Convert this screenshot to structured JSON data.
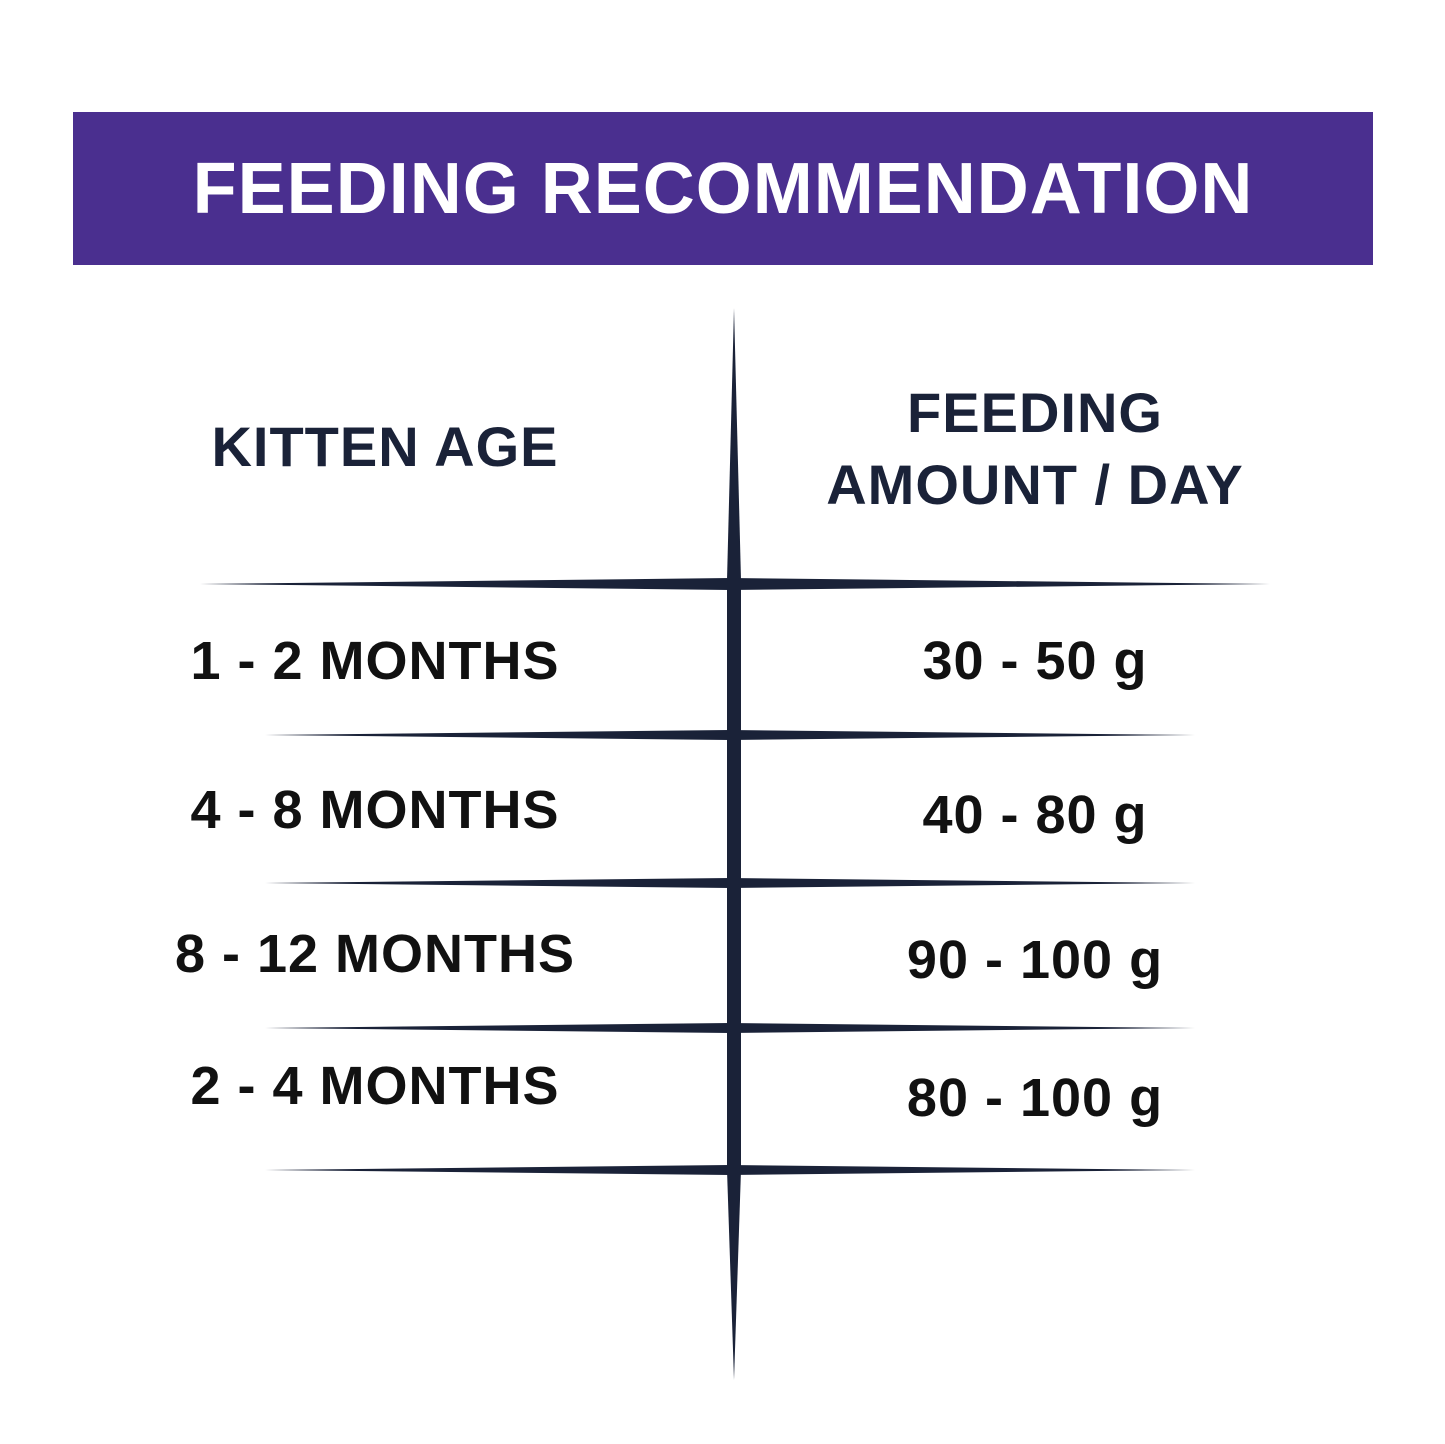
{
  "banner": {
    "title": "FEEDING RECOMMENDATION"
  },
  "colors": {
    "banner_bg": "#4a2f8f",
    "banner_text": "#ffffff",
    "rule": "#1a2238",
    "text": "#1a2238"
  },
  "table": {
    "headers": {
      "age": "KITTEN AGE",
      "amount_line1": "FEEDING",
      "amount_line2": "AMOUNT / DAY"
    },
    "rows": [
      {
        "age": "1 - 2 MONTHS",
        "amount": "30 - 50 g"
      },
      {
        "age": "4 - 8 MONTHS",
        "amount": "40 - 80 g"
      },
      {
        "age": "8 - 12 MONTHS",
        "amount": "90 - 100 g"
      },
      {
        "age": "2 - 4 MONTHS",
        "amount": "80 - 100 g"
      }
    ]
  }
}
